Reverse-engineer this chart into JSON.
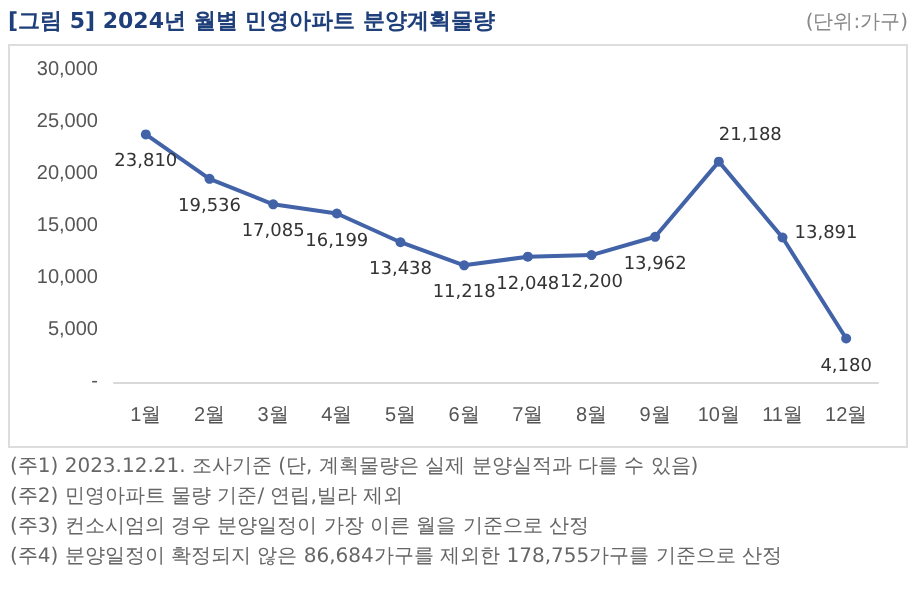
{
  "chart_data": {
    "type": "line",
    "title": "[그림 5] 2024년 월별 민영아파트 분양계획물량",
    "subtitle": "(단위:가구)",
    "categories": [
      "1월",
      "2월",
      "3월",
      "4월",
      "5월",
      "6월",
      "7월",
      "8월",
      "9월",
      "10월",
      "11월",
      "12월"
    ],
    "series": [
      {
        "color": "#4263a8",
        "values": [
          23810,
          19536,
          17085,
          16199,
          13438,
          11218,
          12048,
          12200,
          13962,
          21188,
          13891,
          4180
        ],
        "value_labels": [
          "23,810",
          "19,536",
          "17,085",
          "16,199",
          "13,438",
          "11,218",
          "12,048",
          "12,200",
          "13,962",
          "21,188",
          "13,891",
          "4,180"
        ]
      }
    ],
    "ylim": [
      0,
      30000
    ],
    "yticks": [
      {
        "value": 0,
        "label": "-"
      },
      {
        "value": 5000,
        "label": "5,000"
      },
      {
        "value": 10000,
        "label": "10,000"
      },
      {
        "value": 15000,
        "label": "15,000"
      },
      {
        "value": 20000,
        "label": "20,000"
      },
      {
        "value": 25000,
        "label": "25,000"
      },
      {
        "value": 30000,
        "label": "30,000"
      }
    ],
    "grid": false,
    "marker": "circle",
    "line_style": "solid",
    "annotations": [
      "(주1) 2023.12.21. 조사기준 (단, 계획물량은 실제 분양실적과 다를 수 있음)",
      "(주2) 민영아파트 물량 기준/ 연립,빌라 제외",
      "(주3) 컨소시엄의 경우 분양일정이 가장 이른 월을 기준으로 산정",
      "(주4) 분양일정이 확정되지 않은 86,684가구를 제외한 178,755가구를 기준으로 산정"
    ]
  }
}
